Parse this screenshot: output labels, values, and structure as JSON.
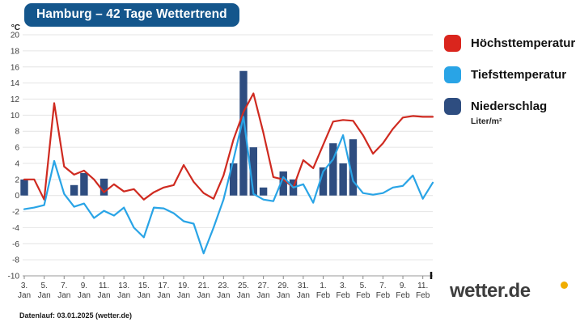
{
  "title": "Hamburg – 42 Tage Wettertrend",
  "legend": {
    "items": [
      {
        "label": "Höchsttemperatur",
        "color": "#da251d"
      },
      {
        "label": "Tiefsttemperatur",
        "color": "#29a4e6"
      },
      {
        "label": "Niederschlag",
        "color": "#2e4d80",
        "sublabel": "Liter/m²"
      }
    ]
  },
  "footer": {
    "datenlauf": "Datenlauf: 03.01.2025 (wetter.de)",
    "brand": "wetter.de",
    "brand_dot_color": "#f0ad00"
  },
  "chart_data": {
    "type": "line+bar",
    "title": "Hamburg – 42 Tage Wettertrend",
    "ylabel": "°C",
    "ylim": [
      -10,
      20
    ],
    "grid": true,
    "days_total": 42,
    "y_ticks": [
      20,
      18,
      16,
      14,
      12,
      10,
      8,
      6,
      4,
      2,
      0,
      -2,
      -4,
      -6,
      -8,
      -10
    ],
    "x_ticks": [
      {
        "i": 0,
        "day": "3.",
        "month": "Jan"
      },
      {
        "i": 2,
        "day": "5.",
        "month": "Jan"
      },
      {
        "i": 4,
        "day": "7.",
        "month": "Jan"
      },
      {
        "i": 6,
        "day": "9.",
        "month": "Jan"
      },
      {
        "i": 8,
        "day": "11.",
        "month": "Jan"
      },
      {
        "i": 10,
        "day": "13.",
        "month": "Jan"
      },
      {
        "i": 12,
        "day": "15.",
        "month": "Jan"
      },
      {
        "i": 14,
        "day": "17.",
        "month": "Jan"
      },
      {
        "i": 16,
        "day": "19.",
        "month": "Jan"
      },
      {
        "i": 18,
        "day": "21.",
        "month": "Jan"
      },
      {
        "i": 20,
        "day": "23.",
        "month": "Jan"
      },
      {
        "i": 22,
        "day": "25.",
        "month": "Jan"
      },
      {
        "i": 24,
        "day": "27.",
        "month": "Jan"
      },
      {
        "i": 26,
        "day": "29.",
        "month": "Jan"
      },
      {
        "i": 28,
        "day": "31.",
        "month": "Jan"
      },
      {
        "i": 30,
        "day": "1.",
        "month": "Feb"
      },
      {
        "i": 32,
        "day": "3.",
        "month": "Feb"
      },
      {
        "i": 34,
        "day": "5.",
        "month": "Feb"
      },
      {
        "i": 36,
        "day": "7.",
        "month": "Feb"
      },
      {
        "i": 38,
        "day": "9.",
        "month": "Feb"
      },
      {
        "i": 40,
        "day": "11.",
        "month": "Feb"
      }
    ],
    "series": [
      {
        "name": "Höchsttemperatur",
        "type": "line",
        "color": "#cf2a20",
        "values": [
          2,
          2,
          -0.5,
          11.5,
          3.6,
          2.6,
          3.1,
          2,
          0.4,
          1.4,
          0.5,
          0.8,
          -0.5,
          0.4,
          1,
          1.3,
          3.8,
          1.7,
          0.3,
          -0.4,
          2.5,
          7,
          10.4,
          12.7,
          7.8,
          2.3,
          2,
          1,
          4.4,
          3.4,
          6.3,
          9.2,
          9.4,
          9.3,
          7.5,
          5.2,
          6.5,
          8.3,
          9.7,
          9.9,
          9.8,
          9.8
        ]
      },
      {
        "name": "Tiefsttemperatur",
        "type": "line",
        "color": "#29a4e6",
        "values": [
          -1.7,
          -1.5,
          -1.2,
          4.3,
          0.2,
          -1.4,
          -1,
          -2.8,
          -1.9,
          -2.5,
          -1.5,
          -4,
          -5.2,
          -1.5,
          -1.6,
          -2.2,
          -3.2,
          -3.5,
          -7.2,
          -4,
          -0.5,
          4.5,
          9.8,
          0.2,
          -0.5,
          -0.7,
          2.3,
          1,
          1.4,
          -0.9,
          3,
          4.5,
          7.5,
          1.8,
          0.3,
          0.1,
          0.3,
          1,
          1.2,
          2.5,
          -0.4,
          1.6
        ]
      },
      {
        "name": "Niederschlag",
        "type": "bar",
        "unit": "Liter/m²",
        "color": "#2e4d80",
        "values": [
          2,
          0,
          0,
          0,
          0,
          1.3,
          2.8,
          0,
          2.1,
          0,
          0,
          0,
          0,
          0,
          0,
          0,
          0,
          0,
          0,
          0,
          0,
          4,
          15.5,
          6,
          1,
          0,
          3,
          2,
          0,
          0,
          3.5,
          6.5,
          4,
          7,
          0,
          0,
          0,
          0,
          0,
          0,
          0,
          0
        ]
      }
    ]
  }
}
